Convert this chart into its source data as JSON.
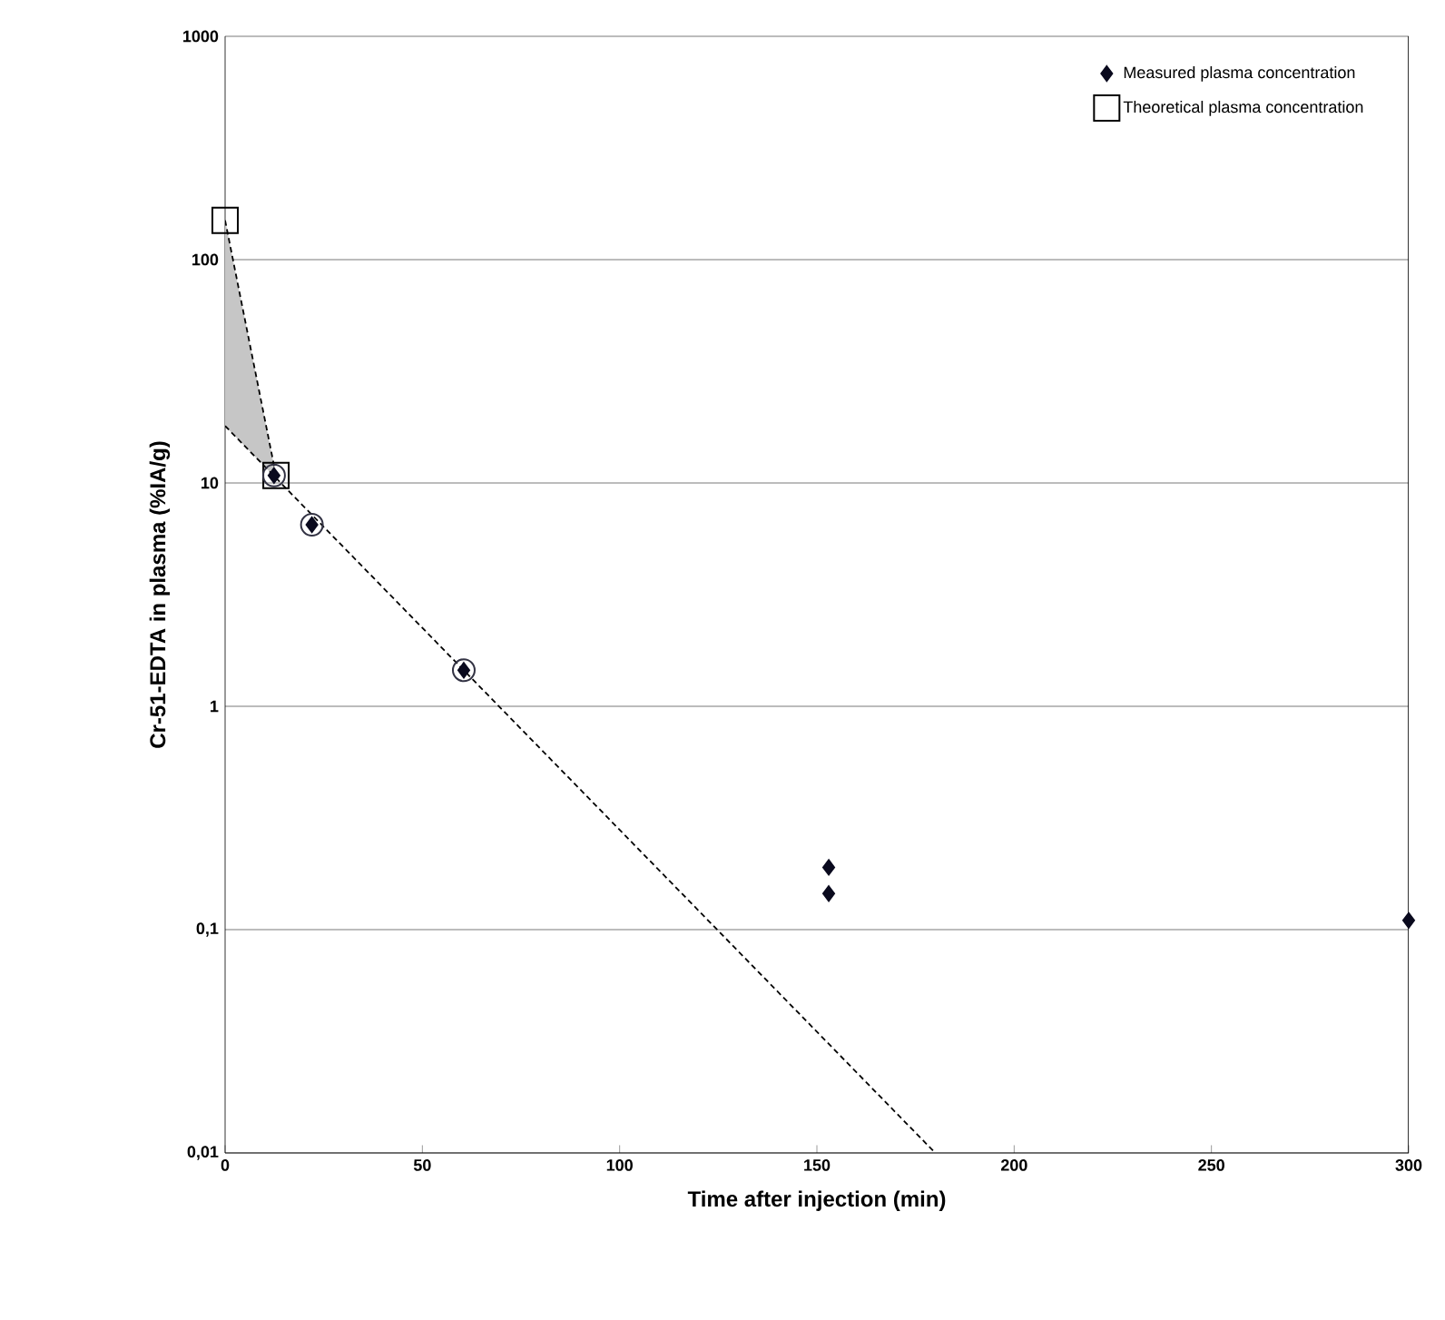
{
  "chart_data": {
    "type": "scatter",
    "xlabel": "Time after injection (min)",
    "ylabel": "Cr-51-EDTA in plasma (%IA/g)",
    "log": "y",
    "grid": "y",
    "legend": "top right",
    "xlim": [
      0,
      300
    ],
    "xticks": [
      0,
      50,
      100,
      150,
      200,
      250,
      300
    ],
    "ylim": [
      0.01,
      1000
    ],
    "yticks": [
      {
        "value": 0.01,
        "label": "0,01"
      },
      {
        "value": 0.1,
        "label": "0,1"
      },
      1,
      10,
      100,
      1000
    ],
    "series": [
      {
        "name": "Measured plasma concentration",
        "marker": "diamond",
        "color": "#0a0a1e",
        "x": [
          12.4,
          22,
          60.5,
          153,
          153,
          300
        ],
        "values": [
          10.8,
          6.5,
          1.45,
          0.19,
          0.145,
          0.11
        ]
      },
      {
        "name": "Theoretical plasma concentration",
        "marker": "square",
        "color": "#000000",
        "x": [
          0,
          12.9
        ],
        "values": [
          150,
          10.8
        ]
      },
      {
        "marker": "circle",
        "color": "#333344",
        "x": [
          12.4,
          22,
          60.5
        ],
        "values": [
          10.8,
          6.5,
          1.45
        ]
      },
      {
        "type": "line",
        "line_style": "dashed",
        "marker": "none",
        "color": "#000000",
        "x": [
          0,
          12.9
        ],
        "values": [
          150,
          10.8
        ],
        "lower": [
          18,
          10.5
        ],
        "upper": [
          150,
          10.8
        ]
      },
      {
        "type": "line",
        "line_style": "dashed",
        "marker": "none",
        "color": "#000000",
        "x": [
          0,
          180
        ],
        "values": [
          18,
          0.01
        ]
      }
    ]
  }
}
